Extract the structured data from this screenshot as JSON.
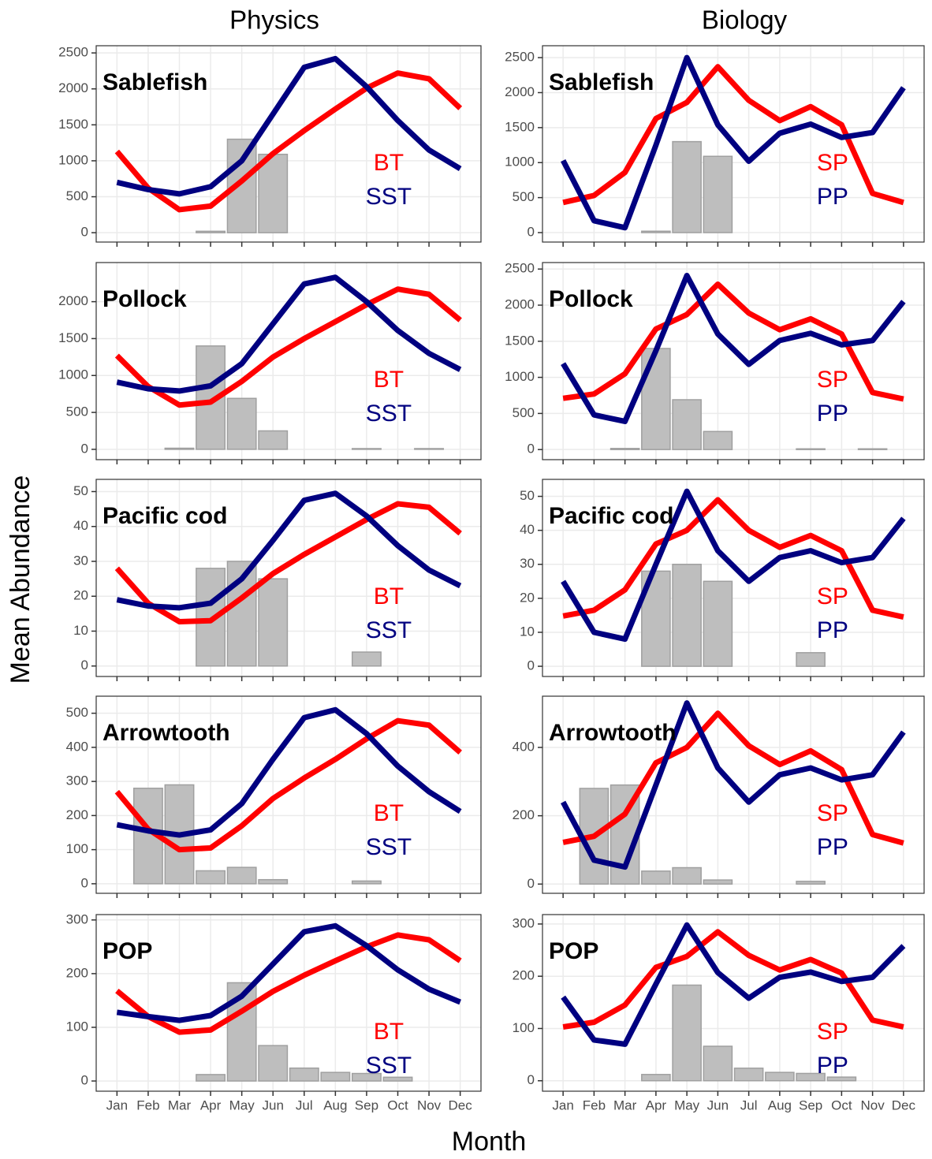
{
  "column_titles": [
    "Physics",
    "Biology"
  ],
  "y_label": "Mean Abundance",
  "x_label": "Month",
  "months": [
    "Jan",
    "Feb",
    "Mar",
    "Apr",
    "May",
    "Jun",
    "Jul",
    "Aug",
    "Sep",
    "Oct",
    "Nov",
    "Dec"
  ],
  "chart_data": [
    {
      "type": "bar-line",
      "title": "Sablefish",
      "color": "#bebebe",
      "grid": true,
      "values": [
        0,
        0,
        0,
        20,
        1300,
        1090,
        0,
        0,
        0,
        0,
        0,
        0
      ],
      "series": [
        {
          "name": "BT",
          "color": "#ff0000",
          "values": [
            1130,
            620,
            320,
            370,
            720,
            1100,
            1420,
            1720,
            2010,
            2220,
            2140,
            1730
          ]
        },
        {
          "name": "SST",
          "color": "#000080",
          "values": [
            700,
            600,
            540,
            640,
            1000,
            1650,
            2300,
            2420,
            2030,
            1560,
            1150,
            890
          ]
        }
      ],
      "ylim": [
        -130,
        2600
      ],
      "yticks": [
        0,
        500,
        1000,
        1500,
        2000,
        2500
      ]
    },
    {
      "type": "bar-line",
      "title": "Pollock",
      "color": "#bebebe",
      "grid": true,
      "values": [
        0,
        0,
        15,
        1400,
        690,
        250,
        0,
        0,
        10,
        0,
        10,
        0
      ],
      "series": [
        {
          "name": "BT",
          "color": "#ff0000",
          "values": [
            1270,
            850,
            600,
            640,
            920,
            1250,
            1500,
            1730,
            1960,
            2170,
            2100,
            1750
          ]
        },
        {
          "name": "SST",
          "color": "#000080",
          "values": [
            910,
            820,
            790,
            860,
            1160,
            1700,
            2240,
            2330,
            2000,
            1610,
            1300,
            1080
          ]
        }
      ],
      "ylim": [
        -140,
        2530
      ],
      "yticks": [
        0,
        500,
        1000,
        1500,
        2000
      ]
    },
    {
      "type": "bar-line",
      "title": "Pacific cod",
      "color": "#bebebe",
      "grid": true,
      "values": [
        0,
        0,
        0,
        28,
        30,
        25,
        0,
        0,
        4,
        0,
        0,
        0
      ],
      "series": [
        {
          "name": "BT",
          "color": "#ff0000",
          "values": [
            28,
            18,
            12.7,
            13,
            19.5,
            26.5,
            32,
            37,
            42,
            46.5,
            45.5,
            38
          ]
        },
        {
          "name": "SST",
          "color": "#000080",
          "values": [
            19,
            17.2,
            16.7,
            18,
            25,
            36,
            47.5,
            49.5,
            43,
            34.5,
            27.5,
            23
          ]
        }
      ],
      "ylim": [
        -3,
        53.5
      ],
      "yticks": [
        0,
        10,
        20,
        30,
        40,
        50
      ]
    },
    {
      "type": "bar-line",
      "title": "Arrowtooth",
      "color": "#bebebe",
      "grid": true,
      "values": [
        0,
        280,
        290,
        38,
        48,
        12,
        0,
        0,
        8,
        0,
        0,
        0
      ],
      "series": [
        {
          "name": "BT",
          "color": "#ff0000",
          "values": [
            270,
            160,
            100,
            105,
            170,
            250,
            310,
            365,
            425,
            478,
            465,
            385
          ]
        },
        {
          "name": "SST",
          "color": "#000080",
          "values": [
            173,
            155,
            143,
            158,
            235,
            365,
            487,
            510,
            440,
            345,
            270,
            212
          ]
        }
      ],
      "ylim": [
        -28,
        550
      ],
      "yticks": [
        0,
        100,
        200,
        300,
        400,
        500
      ]
    },
    {
      "type": "bar-line",
      "title": "POP",
      "color": "#bebebe",
      "grid": true,
      "values": [
        0,
        0,
        0,
        12,
        183,
        66,
        24,
        16,
        14,
        7,
        0,
        0
      ],
      "series": [
        {
          "name": "BT",
          "color": "#ff0000",
          "values": [
            168,
            120,
            91,
            95,
            130,
            167,
            197,
            224,
            250,
            272,
            263,
            224
          ]
        },
        {
          "name": "SST",
          "color": "#000080",
          "values": [
            128,
            120,
            113,
            122,
            158,
            218,
            278,
            289,
            252,
            207,
            171,
            147
          ]
        }
      ],
      "ylim": [
        -19,
        310
      ],
      "yticks": [
        0,
        100,
        200,
        300
      ]
    },
    {
      "type": "bar-line",
      "title": "Sablefish",
      "color": "#bebebe",
      "grid": true,
      "values": [
        0,
        0,
        0,
        20,
        1300,
        1090,
        0,
        0,
        0,
        0,
        0,
        0
      ],
      "series": [
        {
          "name": "SP",
          "color": "#ff0000",
          "values": [
            430,
            530,
            860,
            1630,
            1860,
            2370,
            1890,
            1600,
            1800,
            1540,
            560,
            430
          ]
        },
        {
          "name": "PP",
          "color": "#000080",
          "values": [
            1030,
            170,
            70,
            1250,
            2500,
            1540,
            1020,
            1420,
            1550,
            1360,
            1430,
            2070
          ]
        }
      ],
      "ylim": [
        -135,
        2670
      ],
      "yticks": [
        0,
        500,
        1000,
        1500,
        2000,
        2500
      ]
    },
    {
      "type": "bar-line",
      "title": "Pollock",
      "color": "#bebebe",
      "grid": true,
      "values": [
        0,
        0,
        15,
        1400,
        690,
        250,
        0,
        0,
        10,
        0,
        10,
        0
      ],
      "series": [
        {
          "name": "SP",
          "color": "#ff0000",
          "values": [
            710,
            770,
            1050,
            1670,
            1870,
            2290,
            1890,
            1660,
            1810,
            1600,
            790,
            700
          ]
        },
        {
          "name": "PP",
          "color": "#000080",
          "values": [
            1190,
            480,
            390,
            1370,
            2410,
            1600,
            1180,
            1510,
            1610,
            1450,
            1510,
            2050
          ]
        }
      ],
      "ylim": [
        -140,
        2590
      ],
      "yticks": [
        0,
        500,
        1000,
        1500,
        2000,
        2500
      ]
    },
    {
      "type": "bar-line",
      "title": "Pacific cod",
      "color": "#bebebe",
      "grid": true,
      "values": [
        0,
        0,
        0,
        28,
        30,
        25,
        0,
        0,
        4,
        0,
        0,
        0
      ],
      "series": [
        {
          "name": "SP",
          "color": "#ff0000",
          "values": [
            14.8,
            16.5,
            22.5,
            36,
            40,
            49,
            40,
            35,
            38.5,
            34,
            16.5,
            14.5
          ]
        },
        {
          "name": "PP",
          "color": "#000080",
          "values": [
            25,
            10,
            8,
            30,
            51.5,
            34,
            25,
            32,
            34,
            30.5,
            32,
            43.5
          ]
        }
      ],
      "ylim": [
        -3,
        55
      ],
      "yticks": [
        0,
        10,
        20,
        30,
        40,
        50
      ]
    },
    {
      "type": "bar-line",
      "title": "Arrowtooth",
      "color": "#bebebe",
      "grid": true,
      "values": [
        0,
        280,
        290,
        38,
        48,
        12,
        0,
        0,
        8,
        0,
        0,
        0
      ],
      "series": [
        {
          "name": "SP",
          "color": "#ff0000",
          "values": [
            122,
            140,
            205,
            355,
            400,
            500,
            405,
            350,
            390,
            335,
            145,
            120
          ]
        },
        {
          "name": "PP",
          "color": "#000080",
          "values": [
            240,
            70,
            50,
            290,
            530,
            340,
            240,
            320,
            340,
            305,
            320,
            445
          ]
        }
      ],
      "ylim": [
        -27,
        550
      ],
      "yticks": [
        0,
        200,
        400
      ]
    },
    {
      "type": "bar-line",
      "title": "POP",
      "color": "#bebebe",
      "grid": true,
      "values": [
        0,
        0,
        0,
        12,
        183,
        66,
        24,
        16,
        14,
        7,
        0,
        0
      ],
      "series": [
        {
          "name": "SP",
          "color": "#ff0000",
          "values": [
            103,
            112,
            145,
            217,
            238,
            285,
            240,
            212,
            232,
            206,
            116,
            103
          ]
        },
        {
          "name": "PP",
          "color": "#000080",
          "values": [
            160,
            78,
            70,
            185,
            298,
            207,
            158,
            198,
            208,
            190,
            198,
            258
          ]
        }
      ],
      "ylim": [
        -20,
        318
      ],
      "yticks": [
        0,
        100,
        200,
        300
      ]
    }
  ]
}
